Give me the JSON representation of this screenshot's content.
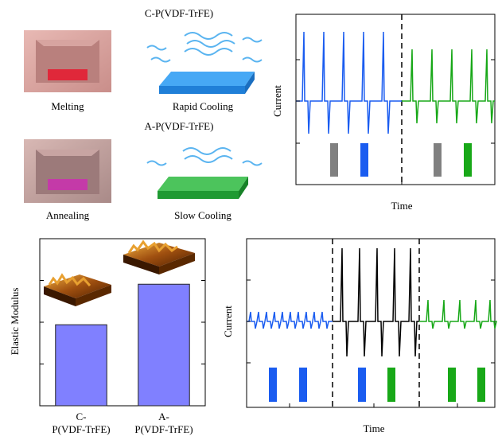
{
  "schematic": {
    "c_title": "C-P(VDF-TrFE)",
    "melting": "Melting",
    "rapid_cooling": "Rapid Cooling",
    "a_title": "A-P(VDF-TrFE)",
    "annealing": "Annealing",
    "slow_cooling": "Slow Cooling"
  },
  "current_plots": [
    {
      "ylabel": "Current",
      "xlabel": "Time"
    },
    {
      "ylabel": "Current",
      "xlabel": "Time"
    }
  ],
  "chart_data": {
    "type": "bar",
    "ylabel": "Elastic Modulus",
    "categories": [
      "C-\nP(VDF-TrFE)",
      "A-\nP(VDF-TrFE)"
    ],
    "values": [
      1.94,
      2.91
    ],
    "color": "#8080ff",
    "ylim": [
      0,
      4
    ],
    "yticks": [
      1,
      2,
      3
    ]
  }
}
